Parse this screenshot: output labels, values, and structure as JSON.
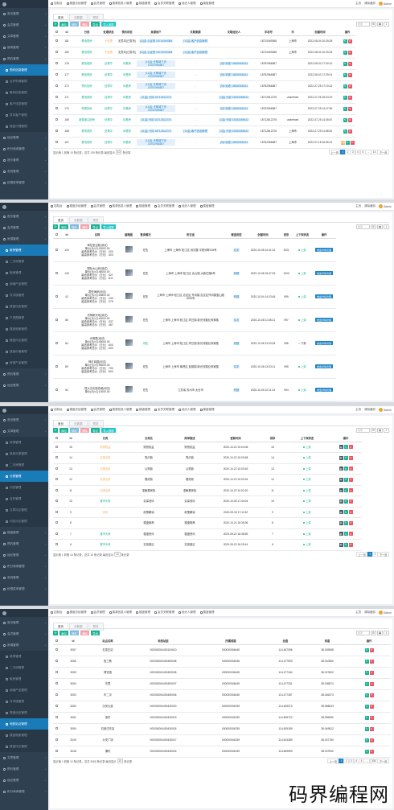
{
  "top_nav": [
    {
      "icon": "grid-icon",
      "label": "控制台"
    },
    {
      "icon": "grid-icon",
      "label": "楼盘总经管理"
    },
    {
      "icon": "grid-icon",
      "label": "会员管理"
    },
    {
      "icon": "grid-icon",
      "label": "楼源信息人管理"
    },
    {
      "icon": "grid-icon",
      "label": "楼盘管理"
    },
    {
      "icon": "grid-icon",
      "label": "会员关联管理"
    },
    {
      "icon": "grid-icon",
      "label": "经纪人管理"
    },
    {
      "icon": "grid-icon",
      "label": "楼盘管理"
    }
  ],
  "top_right": {
    "home": "主页",
    "clear": "清除缓存",
    "user": "Admin"
  },
  "tabs": [
    "首页",
    "无数据",
    "预览"
  ],
  "toolbar": {
    "add": "添加",
    "edit": "修改",
    "delete": "删除",
    "export": "导出",
    "import": "导入数据"
  },
  "search_placeholder": "搜索",
  "panel1": {
    "sidebar": [
      {
        "label": "首页管理",
        "sub": false,
        "active": false
      },
      {
        "label": "会员管理",
        "sub": false,
        "active": false
      },
      {
        "label": "文章管理",
        "sub": false,
        "active": false
      },
      {
        "label": "新房管理",
        "sub": false,
        "active": false
      },
      {
        "label": "预约管理",
        "sub": false,
        "active": false
      },
      {
        "label": "预约信息管理",
        "sub": true,
        "active": true
      },
      {
        "label": "合作申请管理",
        "sub": true,
        "active": false
      },
      {
        "label": "看房信息管理",
        "sub": true,
        "active": false
      },
      {
        "label": "客户信息管理",
        "sub": true,
        "active": false
      },
      {
        "label": "意向客户管理",
        "sub": true,
        "active": false
      },
      {
        "label": "楼盘代理管理",
        "sub": true,
        "active": false
      },
      {
        "label": "经纪管理",
        "sub": false,
        "active": false
      },
      {
        "label": "积分商城管理",
        "sub": false,
        "active": false
      },
      {
        "label": "提示管理",
        "sub": false,
        "active": false
      },
      {
        "label": "系统管理",
        "sub": false,
        "active": false
      },
      {
        "label": "权限菜单管理",
        "sub": false,
        "active": false
      }
    ],
    "headers": [
      "Id",
      "分类",
      "处理状态",
      "预约状态",
      "来源用户",
      "关联案源",
      "关联经纪人",
      "手机号",
      "市",
      "创建时间",
      "操作"
    ],
    "rows": [
      {
        "id": "181",
        "cat": "看电视房",
        "status": "不处理",
        "state": "无意向(已发布)",
        "user": "[11]会 认证购 18710069368",
        "src": "[11]会 客户信息管理",
        "agent": "",
        "phone": "18710069368",
        "city": "上海市",
        "time": "2022-08-04 10:29:28"
      },
      {
        "id": "180",
        "cat": "看电视房",
        "status": "不处理",
        "state": "无意向(已发布)",
        "user": "[11]会 认证购 18710069368",
        "src": "[11]会 客户信息管理",
        "agent": "",
        "phone": "18710069368",
        "city": "上海市",
        "time": "2022-08-04 10:25:18"
      },
      {
        "id": "178",
        "cat": "看电视房",
        "status": "处理中",
        "state": "待看房",
        "user": "[11]会 光明城下页 18752966587",
        "src": "-",
        "agent": "[9]5 彩峰 15656965444",
        "phone": "18752966587",
        "city": "",
        "time": "2022-08-02 17:30:10"
      },
      {
        "id": "177",
        "cat": "看电视房",
        "status": "处理中",
        "state": "待看房",
        "user": "[11]会 光明城下页 18752966587",
        "src": "-",
        "agent": "[9]5 彩峰 15656965444",
        "phone": "18752966587",
        "city": "",
        "time": "2022-08-02 17:29:01"
      },
      {
        "id": "172",
        "cat": "预约找房",
        "status": "处理中",
        "state": "待看房",
        "user": "[11]会 光明城下页 18752966587",
        "src": "-",
        "agent": "[9]5 彩峰 15656965444",
        "phone": "18752966587",
        "city": "",
        "time": "2022-07-25 17:19:22"
      },
      {
        "id": "171",
        "cat": "看电视房",
        "status": "处理中",
        "state": "待看房",
        "user": "[11]会 分钟 18712812276",
        "src": "-",
        "agent": "[1]会 分钟 15383089842",
        "phone": "18712812276",
        "city": "undefined",
        "time": "2022-07-25 16:04:19"
      },
      {
        "id": "170",
        "cat": "带看找房",
        "status": "处理中",
        "state": "待看房",
        "user": "[11]会 光明城下页 18752966587",
        "src": "-",
        "agent": "[9]5 彩峰 15656965444",
        "phone": "18752966587",
        "city": "",
        "time": "2022-07-25 14:47:50"
      },
      {
        "id": "169",
        "cat": "新楼盘注册房",
        "status": "处理中",
        "state": "待看房",
        "user": "[11]会 分钟 18712812276",
        "src": "-",
        "agent": "[1]会 分钟 15383089842",
        "phone": "18712812276",
        "city": "undefined",
        "time": "2022-07-25 14:35:57"
      },
      {
        "id": "168",
        "cat": "看电视房",
        "status": "处理中",
        "state": "待看房",
        "user": "[11]会 分钟 18712812276",
        "src": "[11]会 客户信息管理",
        "agent": "[1]会 分钟 15383089842",
        "phone": "18712812276",
        "city": "上海市",
        "time": "2022-07-25 11:58:20"
      },
      {
        "id": "167",
        "cat": "看电视房",
        "status": "处理中",
        "state": "待看房",
        "user": "[11]会 光明城下页 18752966587",
        "src": "-",
        "agent": "[9]5 彩峰 15656965444",
        "phone": "18752966587",
        "city": "上海市",
        "time": "2022-07-18 16:06:21"
      }
    ],
    "footer": {
      "pre": "显示第 1 到第 10 条记录，总共 139 条记录 每页显示",
      "size": "10",
      "post": "条记录"
    },
    "pager": [
      "上一页",
      "1",
      "2",
      "3",
      "4",
      "5",
      "...",
      "14",
      "下一页"
    ]
  },
  "panel2": {
    "sidebar": [
      {
        "label": "首页管理",
        "sub": false,
        "active": false
      },
      {
        "label": "会员管理",
        "sub": false,
        "active": false
      },
      {
        "label": "房源管理",
        "sub": false,
        "active": false
      },
      {
        "label": "新房管理",
        "sub": true,
        "active": true
      },
      {
        "label": "二手房管理",
        "sub": true,
        "active": false
      },
      {
        "label": "租房管理",
        "sub": true,
        "active": false
      },
      {
        "label": "商铺产品管理",
        "sub": true,
        "active": false
      },
      {
        "label": "写字楼管理",
        "sub": true,
        "active": false
      },
      {
        "label": "楼盘动态管理",
        "sub": true,
        "active": false
      },
      {
        "label": "户型图管理",
        "sub": true,
        "active": false
      },
      {
        "label": "楼盘相册管理",
        "sub": true,
        "active": false
      },
      {
        "label": "楼盘评论管理",
        "sub": true,
        "active": false
      },
      {
        "label": "楼盘价格管理",
        "sub": true,
        "active": false
      },
      {
        "label": "房源产品管理",
        "sub": true,
        "active": false
      },
      {
        "label": "预约管理",
        "sub": false,
        "active": false
      },
      {
        "label": "经纪管理",
        "sub": false,
        "active": false
      }
    ],
    "headers": [
      "Id",
      "名称",
      "缩略图",
      "售卖情况",
      "所在省",
      "楼盘类型",
      "创建时间",
      "排序",
      "上下架状态",
      "操作"
    ],
    "rows": [
      {
        "id": "115",
        "name": [
          "海伦堡云脑(测试)",
          "单价(元/㎡):43000.00",
          "最低参考总价（万元）:200",
          "最高参考总价（万元）:300"
        ],
        "sale": "在售",
        "loc": "上海市 上海市 松江区 测试楼 平阳河畔155号",
        "type": "住宅",
        "time": "2020-10-08 14:41:02",
        "sort": "1001",
        "on": true
      },
      {
        "id": "130",
        "name": [
          "国际水山房(测试)",
          "单价(元/㎡):48000.00",
          "最低参考总价（万元）:427",
          "最高参考总价（万元）:811"
        ],
        "sale": "在售",
        "loc": "上海市 上海市 松江区 佘山镇 大新位路8号",
        "type": "别墅",
        "time": "2020-10-08 18:07:09",
        "sort": "1000",
        "on": true
      },
      {
        "id": "42",
        "name": [
          "君悦海岸(测试)",
          "单价(元/㎡):28800.00",
          "最低参考总价（万元）:233",
          "最高参考总价（万元）:279"
        ],
        "sale": "在售",
        "loc": "上海市 上海市 松江区 嘉定区 外冈镇 嘉定区外冈镇宝山路2695号",
        "type": "别墅",
        "time": "2020-10-04 14:23:45",
        "sort": "999",
        "on": true
      },
      {
        "id": "86",
        "name": [
          "光明新天地(测试)",
          "单价(元/㎡):40000.00",
          "最低参考总价（万元）:337",
          "最高参考总价（万元）:387"
        ],
        "sale": "在售",
        "loc": "上海市 上海市 松江区 同汪镇 新光河路业商家路",
        "type": "住宅",
        "time": "2020-10-08 11:08:21",
        "sort": "997",
        "on": true
      },
      {
        "id": "84",
        "name": [
          "光明里(测试)",
          "单价(元/㎡):45000.00",
          "最低参考总价（万元）:600",
          "最高参考总价（万元）:600"
        ],
        "sale": "待售",
        "loc": "上海市 上海市 松江区 同汪镇 新光河路业商家路",
        "type": "别墅",
        "time": "2020-10-08 13:03:28",
        "sort": "996",
        "on": false
      },
      {
        "id": "80",
        "name": [
          "神灯岗园(测试)",
          "单价(元/㎡):55000.00",
          "最低参考总价（万元）:750",
          "最高参考总价（万元）:800"
        ],
        "sale": "在售",
        "loc": "上海市 上海市 奉贤区 彭镇镇 新光河路业商家路",
        "type": "住宅",
        "time": "2020-10-08 13:03:11",
        "sort": "995",
        "on": true
      },
      {
        "id": "54",
        "name": [
          "恒大文化旅游城(测试)",
          "单价(元/㎡):10000.00"
        ],
        "sale": "在售",
        "loc": "江苏省 苏州市 太仓市",
        "type": "别墅",
        "time": "2020-10-05 10:11:24",
        "sort": "994",
        "on": true
      }
    ]
  },
  "panel3": {
    "sidebar": [
      {
        "label": "首页管理",
        "sub": false,
        "active": false
      },
      {
        "label": "文章管理",
        "sub": false,
        "active": false
      },
      {
        "label": "房源管理",
        "sub": true,
        "active": false
      },
      {
        "label": "新房分类管理",
        "sub": true,
        "active": false
      },
      {
        "label": "二手房管理",
        "sub": true,
        "active": false
      },
      {
        "label": "分类管理",
        "sub": true,
        "active": true
      },
      {
        "label": "问答管理",
        "sub": true,
        "active": false
      },
      {
        "label": "百科管理",
        "sub": true,
        "active": false
      },
      {
        "label": "文章评论管理",
        "sub": true,
        "active": false
      },
      {
        "label": "问答评论管理",
        "sub": true,
        "active": false
      },
      {
        "label": "楼盘管理",
        "sub": false,
        "active": false
      },
      {
        "label": "预约管理",
        "sub": false,
        "active": false
      },
      {
        "label": "经纪管理",
        "sub": false,
        "active": false
      },
      {
        "label": "积分商城管理",
        "sub": false,
        "active": false
      },
      {
        "label": "系统管理",
        "sub": false,
        "active": false
      },
      {
        "label": "权限菜单管理",
        "sub": false,
        "active": false
      }
    ],
    "headers": [
      "Id",
      "分类",
      "分类名",
      "简单描述",
      "更新时间",
      "排序",
      "上下架状态",
      "操作"
    ],
    "rows": [
      {
        "id": "15",
        "cat": "购房权益",
        "catc": "orange",
        "name": "购的权益",
        "desc": "购的权益",
        "time": "2020-10-22 10:04:08",
        "sort": "15"
      },
      {
        "id": "14",
        "cat": "买房百科",
        "catc": "orange",
        "name": "签约篇",
        "desc": "签约篇",
        "time": "2020-10-22 10:03:58",
        "sort": "14"
      },
      {
        "id": "13",
        "cat": "买房百科",
        "catc": "orange",
        "name": "认购篇",
        "desc": "认购篇",
        "time": "2020-10-22 10:03:49",
        "sort": "13"
      },
      {
        "id": "12",
        "cat": "买房百科",
        "catc": "orange",
        "name": "看房篇",
        "desc": "看房篇",
        "time": "2020-10-22 10:03:34",
        "sort": "12"
      },
      {
        "id": "11",
        "cat": "买房百科",
        "catc": "orange",
        "name": "准备看房篇",
        "desc": "准备看房篇",
        "time": "2020-10-22 10:02:20",
        "sort": "11"
      },
      {
        "id": "10",
        "cat": "楼市头条",
        "catc": "green",
        "name": "实探测评",
        "desc": "实探测评",
        "time": "2020-10-05 17:44:04",
        "sort": "10"
      },
      {
        "id": "9",
        "cat": "资讯",
        "catc": "orange",
        "name": "政策解读",
        "desc": "政策解读",
        "time": "2020-09-30 17:11:52",
        "sort": "9"
      },
      {
        "id": "8",
        "cat": "",
        "catc": "",
        "name": "楼盘推荐",
        "desc": "楼盘推荐",
        "time": "2020-10-21 16:39:36",
        "sort": "8"
      },
      {
        "id": "7",
        "cat": "楼市头条",
        "catc": "green",
        "name": "楼盘快讯",
        "desc": "楼盘快讯",
        "time": "2020-09-22 16:38:59",
        "sort": "7"
      },
      {
        "id": "6",
        "cat": "楼市头条",
        "catc": "green",
        "name": "实探建议",
        "desc": "实探建议",
        "time": "2020-09-22 16:29:44",
        "sort": "6"
      }
    ],
    "footer": {
      "pre": "显示第 1 到第 10 条记录，总共 15 条记录 每页显示",
      "size": "10",
      "post": "条记录"
    },
    "pager": [
      "上一页",
      "1",
      "2",
      "下一页"
    ]
  },
  "panel4": {
    "sidebar": [
      {
        "label": "首页管理",
        "sub": false,
        "active": false
      },
      {
        "label": "会员管理",
        "sub": false,
        "active": false
      },
      {
        "label": "房源管理",
        "sub": false,
        "active": false
      },
      {
        "label": "新房管理",
        "sub": true,
        "active": false
      },
      {
        "label": "二手房管理",
        "sub": true,
        "active": false
      },
      {
        "label": "租房管理",
        "sub": true,
        "active": false
      },
      {
        "label": "商铺产品管理",
        "sub": true,
        "active": false
      },
      {
        "label": "写字楼管理",
        "sub": true,
        "active": false
      },
      {
        "label": "楼盘动态管理",
        "sub": true,
        "active": false
      },
      {
        "label": "地铁站点管理",
        "sub": true,
        "active": true
      },
      {
        "label": "楼盘相册管理",
        "sub": true,
        "active": false
      },
      {
        "label": "楼盘评论管理",
        "sub": true,
        "active": false
      },
      {
        "label": "文章管理",
        "sub": false,
        "active": false
      },
      {
        "label": "预约管理",
        "sub": false,
        "active": false
      },
      {
        "label": "经纪管理",
        "sub": false,
        "active": false
      },
      {
        "label": "积分商城管理",
        "sub": false,
        "active": false
      }
    ],
    "headers": [
      "Id",
      "站点名称",
      "地铁站组",
      "所属线路",
      "经度",
      "纬度",
      "操作"
    ],
    "rows": [
      {
        "id": "3057",
        "name": "石墨庄站",
        "group": "000000004400104010",
        "line": "000000004645",
        "lng": "114.487096",
        "lat": "38.009958"
      },
      {
        "id": "3056",
        "name": "西三教",
        "group": "000000004400450008",
        "line": "000000004645",
        "lng": "114.477593",
        "lat": "38.010660"
      },
      {
        "id": "3055",
        "name": "博览馆",
        "group": "000000004400450008",
        "line": "000000004645",
        "lng": "114.477344",
        "lat": "38.027802"
      },
      {
        "id": "3054",
        "name": "东里",
        "group": "000000004400450007",
        "line": "000000004645",
        "lng": "114.477331",
        "lat": "38.036874"
      },
      {
        "id": "3053",
        "name": "市二中",
        "group": "000000004400450006",
        "line": "000000004645",
        "lng": "114.477287",
        "lat": "38.046373"
      },
      {
        "id": "3052",
        "name": "汉河大道",
        "group": "000000004400430020",
        "line": "000000004339",
        "lng": "114.625073",
        "lat": "38.068843"
      },
      {
        "id": "3051",
        "name": "惠村",
        "group": "000000004400430019",
        "line": "000000004339",
        "lng": "114.628722",
        "lat": "38.059590"
      },
      {
        "id": "3050",
        "name": "石家庄东站",
        "group": "000000004400430018",
        "line": "000000004339",
        "lng": "114.629189",
        "lat": "38.049812"
      },
      {
        "id": "3049",
        "name": "大安广场",
        "group": "000000004400430017",
        "line": "000000004339",
        "lng": "114.623389",
        "lat": "38.037780"
      },
      {
        "id": "3048",
        "name": "蒲村",
        "group": "000000004400430016",
        "line": "000000004339",
        "lng": "114.609599",
        "lat": "38.037530"
      }
    ],
    "footer": {
      "pre": "显示第 1 到第 10 条记录，总共 3058 条记录 每页显示",
      "size": "10",
      "post": "条记录"
    },
    "pager": [
      "上一页",
      "1",
      "2",
      "3",
      "4",
      "5",
      "...",
      "306",
      "下一页"
    ]
  },
  "watermark": "码界编程网"
}
